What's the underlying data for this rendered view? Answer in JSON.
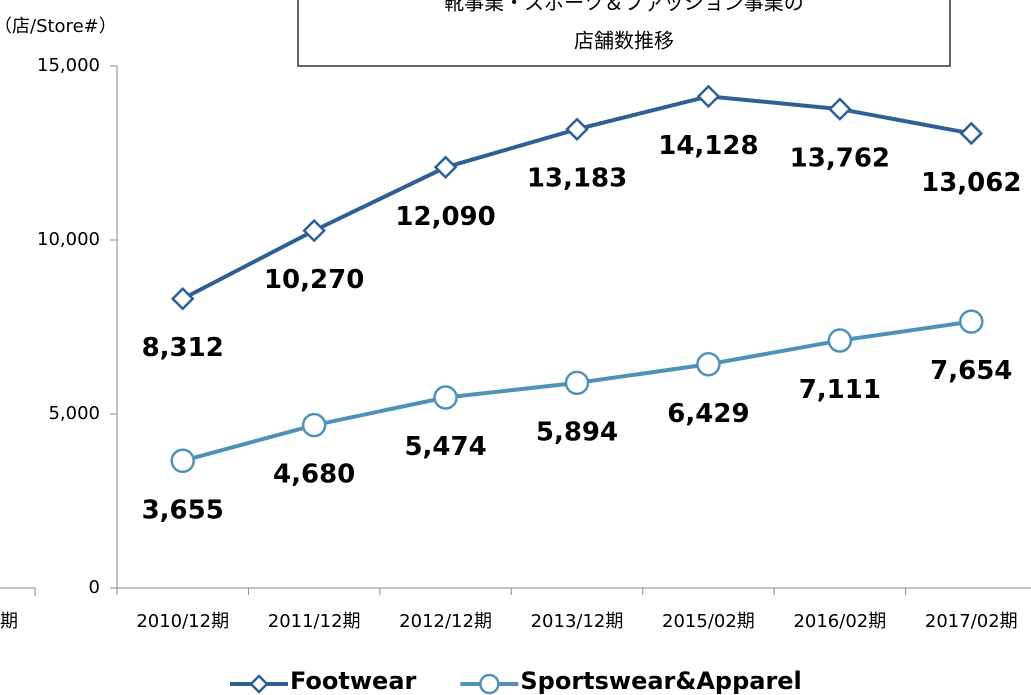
{
  "chart_data": {
    "type": "line",
    "title": [
      "靴事業・スポーツ＆ファッション事業の",
      "店舗数推移"
    ],
    "y_axis_label": "（店/Store#）",
    "annotations": [
      "期"
    ],
    "categories": [
      "2010/12期",
      "2011/12期",
      "2012/12期",
      "2013/12期",
      "2015/02期",
      "2016/02期",
      "2017/02期"
    ],
    "series": [
      {
        "name": "Footwear",
        "color": "#2f5f95",
        "marker": "diamond",
        "values": [
          8312,
          10270,
          12090,
          13183,
          14128,
          13762,
          13062
        ],
        "value_labels": [
          "8,312",
          "10,270",
          "12,090",
          "13,183",
          "14,128",
          "13,762",
          "13,062"
        ]
      },
      {
        "name": "Sportswear&Apparel",
        "color": "#4f91b9",
        "marker": "circle",
        "values": [
          3655,
          4680,
          5474,
          5894,
          6429,
          7111,
          7654
        ],
        "value_labels": [
          "3,655",
          "4,680",
          "5,474",
          "5,894",
          "6,429",
          "7,111",
          "7,654"
        ]
      }
    ],
    "ylim": [
      0,
      15000
    ],
    "yticks": [
      {
        "value": 0,
        "label": "0"
      },
      {
        "value": 5000,
        "label": "5,000"
      },
      {
        "value": 10000,
        "label": "10,000"
      },
      {
        "value": 15000,
        "label": "15,000"
      }
    ],
    "legend": "bottom"
  }
}
